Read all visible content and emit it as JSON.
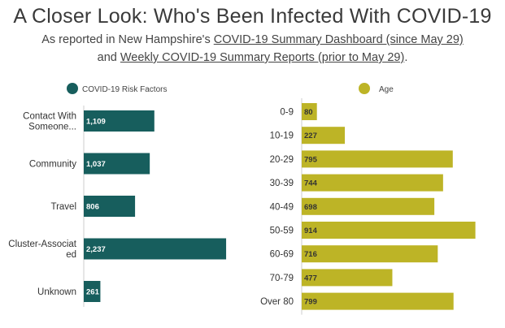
{
  "header": {
    "title": "A Closer Look: Who's Been Infected With COVID-19",
    "line1_prefix": "As reported in New Hampshire's ",
    "line1_link": "COVID-19 Summary Dashboard (since May 29)",
    "line2_prefix": "and ",
    "line2_link": "Weekly COVID-19 Summary Reports (prior to May 29)",
    "line2_suffix": "."
  },
  "chart_data": [
    {
      "type": "bar",
      "orientation": "horizontal",
      "legend": "COVID-19 Risk Factors",
      "color": "#175e5d",
      "label_color": "#ffffff",
      "categories": [
        [
          "Contact With",
          "Someone..."
        ],
        [
          "Community"
        ],
        [
          "Travel"
        ],
        [
          "Cluster-Associat",
          "ed"
        ],
        [
          "Unknown"
        ]
      ],
      "values": [
        1109,
        1037,
        806,
        2237,
        261
      ],
      "value_labels": [
        "1,109",
        "1,037",
        "806",
        "2,237",
        "261"
      ],
      "xlim": [
        0,
        2300
      ]
    },
    {
      "type": "bar",
      "orientation": "horizontal",
      "legend": "Age",
      "color": "#bdb426",
      "label_color": "#333333",
      "categories": [
        [
          "0-9"
        ],
        [
          "10-19"
        ],
        [
          "20-29"
        ],
        [
          "30-39"
        ],
        [
          "40-49"
        ],
        [
          "50-59"
        ],
        [
          "60-69"
        ],
        [
          "70-79"
        ],
        [
          "Over 80"
        ]
      ],
      "values": [
        80,
        227,
        795,
        744,
        698,
        914,
        716,
        477,
        799
      ],
      "value_labels": [
        "80",
        "227",
        "795",
        "744",
        "698",
        "914",
        "716",
        "477",
        "799"
      ],
      "xlim": [
        0,
        950
      ]
    }
  ]
}
